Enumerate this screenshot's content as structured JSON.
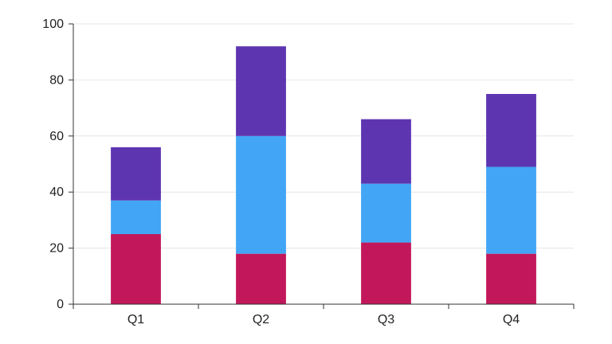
{
  "chart_data": {
    "type": "bar",
    "stacked": true,
    "categories": [
      "Q1",
      "Q2",
      "Q3",
      "Q4"
    ],
    "series": [
      {
        "values": [
          25,
          18,
          22,
          18
        ],
        "color": "#c2185b"
      },
      {
        "values": [
          12,
          42,
          21,
          31
        ],
        "color": "#42a5f5"
      },
      {
        "values": [
          19,
          32,
          23,
          26
        ],
        "color": "#5e35b1"
      }
    ],
    "title": "",
    "xlabel": "",
    "ylabel": "",
    "ylim": [
      0,
      100
    ],
    "yticks": [
      0,
      20,
      40,
      60,
      80,
      100
    ],
    "grid": true,
    "legend": "none"
  }
}
